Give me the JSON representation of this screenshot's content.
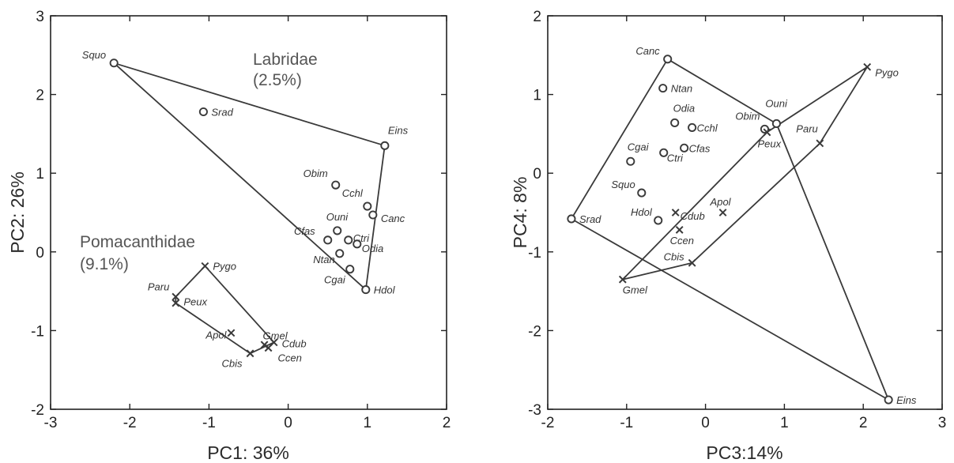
{
  "chart_data": [
    {
      "type": "scatter",
      "xlabel": "PC1: 36%",
      "ylabel": "PC2: 26%",
      "xlim": [
        -3,
        2
      ],
      "ylim": [
        -2,
        3
      ],
      "xticks": [
        "-3",
        "-2",
        "-1",
        "0",
        "1",
        "2"
      ],
      "yticks": [
        "-2",
        "-1",
        "0",
        "1",
        "2",
        "3"
      ],
      "groups": [
        {
          "name": "Labridae",
          "note": "(2.5%)",
          "marker": "circle",
          "hull": [
            "Squo",
            "Eins",
            "Hdol"
          ],
          "points": [
            {
              "label": "Squo",
              "x": -2.2,
              "y": 2.4
            },
            {
              "label": "Srad",
              "x": -1.07,
              "y": 1.78
            },
            {
              "label": "Eins",
              "x": 1.22,
              "y": 1.35
            },
            {
              "label": "Obim",
              "x": 0.6,
              "y": 0.85
            },
            {
              "label": "Cchl",
              "x": 1.0,
              "y": 0.58
            },
            {
              "label": "Canc",
              "x": 1.07,
              "y": 0.47
            },
            {
              "label": "Ouni",
              "x": 0.62,
              "y": 0.27
            },
            {
              "label": "Cfas",
              "x": 0.5,
              "y": 0.15
            },
            {
              "label": "Ctri",
              "x": 0.76,
              "y": 0.15
            },
            {
              "label": "Odia",
              "x": 0.87,
              "y": 0.1
            },
            {
              "label": "Ntan",
              "x": 0.65,
              "y": -0.02
            },
            {
              "label": "Cgai",
              "x": 0.78,
              "y": -0.22
            },
            {
              "label": "Hdol",
              "x": 0.98,
              "y": -0.48
            }
          ]
        },
        {
          "name": "Pomacanthidae",
          "note": "(9.1%)",
          "marker": "cross",
          "hull": [
            "Pygo",
            "Cdub",
            "Cbis",
            "Peux",
            "Paru"
          ],
          "points": [
            {
              "label": "Pygo",
              "x": -1.05,
              "y": -0.18
            },
            {
              "label": "Paru",
              "x": -1.42,
              "y": -0.57
            },
            {
              "label": "Peux",
              "x": -1.42,
              "y": -0.65
            },
            {
              "label": "Apol",
              "x": -0.72,
              "y": -1.03
            },
            {
              "label": "Gmel",
              "x": -0.3,
              "y": -1.18
            },
            {
              "label": "Cdub",
              "x": -0.18,
              "y": -1.15
            },
            {
              "label": "Ccen",
              "x": -0.25,
              "y": -1.22
            },
            {
              "label": "Cbis",
              "x": -0.48,
              "y": -1.29
            }
          ]
        }
      ]
    },
    {
      "type": "scatter",
      "xlabel": "PC3:14%",
      "ylabel": "PC4: 8%",
      "xlim": [
        -2,
        3
      ],
      "ylim": [
        -3,
        2
      ],
      "xticks": [
        "-2",
        "-1",
        "0",
        "1",
        "2",
        "3"
      ],
      "yticks": [
        "-3",
        "-2",
        "-1",
        "0",
        "1",
        "2"
      ],
      "groups": [
        {
          "name": "",
          "note": "",
          "marker": "circle",
          "hull": [
            "Canc",
            "Ouni",
            "Eins",
            "Srad"
          ],
          "points": [
            {
              "label": "Canc",
              "x": -0.48,
              "y": 1.45
            },
            {
              "label": "Ntan",
              "x": -0.54,
              "y": 1.08
            },
            {
              "label": "Odia",
              "x": -0.39,
              "y": 0.64
            },
            {
              "label": "Cchl",
              "x": -0.17,
              "y": 0.58
            },
            {
              "label": "Obim",
              "x": 0.75,
              "y": 0.56
            },
            {
              "label": "Ouni",
              "x": 0.9,
              "y": 0.63
            },
            {
              "label": "Cfas",
              "x": -0.27,
              "y": 0.32
            },
            {
              "label": "Ctri",
              "x": -0.53,
              "y": 0.26
            },
            {
              "label": "Cgai",
              "x": -0.95,
              "y": 0.15
            },
            {
              "label": "Squo",
              "x": -0.81,
              "y": -0.25
            },
            {
              "label": "Hdol",
              "x": -0.6,
              "y": -0.6
            },
            {
              "label": "Srad",
              "x": -1.7,
              "y": -0.58
            },
            {
              "label": "Eins",
              "x": 2.32,
              "y": -2.88
            }
          ]
        },
        {
          "name": "",
          "note": "",
          "marker": "cross",
          "hull": [
            "Pygo",
            "Paru",
            "Cbis",
            "Gmel",
            "Peux"
          ],
          "points": [
            {
              "label": "Pygo",
              "x": 2.05,
              "y": 1.35
            },
            {
              "label": "Paru",
              "x": 1.45,
              "y": 0.38
            },
            {
              "label": "Peux",
              "x": 0.78,
              "y": 0.52
            },
            {
              "label": "Apol",
              "x": 0.22,
              "y": -0.5
            },
            {
              "label": "Cdub",
              "x": -0.38,
              "y": -0.5
            },
            {
              "label": "Ccen",
              "x": -0.33,
              "y": -0.72
            },
            {
              "label": "Cbis",
              "x": -0.17,
              "y": -1.14
            },
            {
              "label": "Gmel",
              "x": -1.05,
              "y": -1.35
            }
          ]
        }
      ]
    }
  ]
}
